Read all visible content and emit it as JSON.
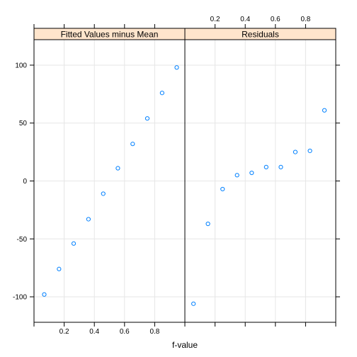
{
  "chart_data": [
    {
      "type": "scatter",
      "panel": "Fitted Values minus Mean",
      "xlabel": "f-value",
      "ylabel": "",
      "xlim": [
        0.0,
        1.0
      ],
      "ylim": [
        -122,
        122
      ],
      "x_ticks": [
        0.2,
        0.4,
        0.6,
        0.8
      ],
      "x_tick_labels": [
        "0.2",
        "0.4",
        "0.6",
        "0.8"
      ],
      "y_ticks": [
        -100,
        -50,
        0,
        50,
        100
      ],
      "y_tick_labels": [
        "-100",
        "-50",
        "0",
        "50",
        "100"
      ],
      "grid": true,
      "point_color": "#0080ff",
      "x": [
        0.068,
        0.166,
        0.263,
        0.361,
        0.459,
        0.556,
        0.654,
        0.751,
        0.849,
        0.946
      ],
      "y": [
        -98,
        -76,
        -54,
        -33,
        -11,
        11,
        32,
        54,
        76,
        98
      ]
    },
    {
      "type": "scatter",
      "panel": "Residuals",
      "xlabel": "f-value",
      "ylabel": "",
      "xlim": [
        0.0,
        1.0
      ],
      "ylim": [
        -122,
        122
      ],
      "x_ticks": [
        0.2,
        0.4,
        0.6,
        0.8
      ],
      "x_tick_labels": [
        "0.2",
        "0.4",
        "0.6",
        "0.8"
      ],
      "y_ticks": [
        -100,
        -50,
        0,
        50,
        100
      ],
      "y_tick_labels": [
        "-100",
        "-50",
        "0",
        "50",
        "100"
      ],
      "grid": true,
      "point_color": "#0080ff",
      "x": [
        0.057,
        0.153,
        0.25,
        0.346,
        0.443,
        0.539,
        0.636,
        0.732,
        0.829,
        0.925,
        0.971
      ],
      "y": [
        -106,
        -37,
        -7,
        5,
        7,
        12,
        12,
        25,
        26,
        61,
        61
      ],
      "note_dup": true
    }
  ],
  "strip_fill": "#ffe5cc",
  "x_axis_title": "f-value"
}
